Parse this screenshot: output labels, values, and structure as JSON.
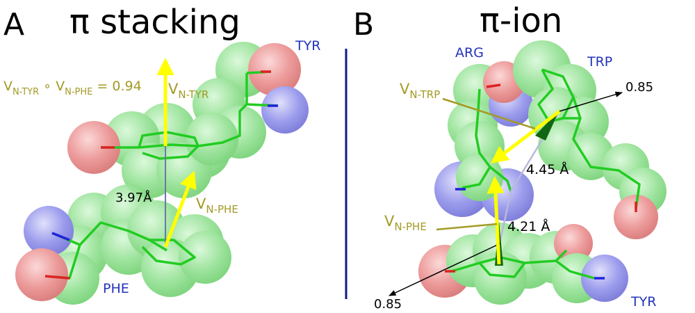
{
  "panel_a": {
    "letter": "A",
    "title": "π stacking",
    "residue_top": "TYR",
    "residue_bottom": "PHE",
    "dot_product_label": "V",
    "dot_product_sub1": "N-TYR",
    "dot_product_op": " ∘ V",
    "dot_product_sub2": "N-PHE",
    "dot_product_value": " = 0.94",
    "vec_top_label": "V",
    "vec_top_sub": "N-TYR",
    "vec_bottom_label": "V",
    "vec_bottom_sub": "N-PHE",
    "distance": "3.97Å"
  },
  "panel_b": {
    "letter": "B",
    "title": "π-ion",
    "residue_arg": "ARG",
    "residue_trp": "TRP",
    "residue_tyr": "TYR",
    "vec_trp_label": "V",
    "vec_trp_sub": "N-TRP",
    "vec_phe_label": "V",
    "vec_phe_sub": "N-PHE",
    "distance_upper": "4.45 Å",
    "distance_lower": "4.21 Å",
    "value_upper": "0.85",
    "value_lower": "0.85"
  },
  "colors": {
    "carbon": "#7fdd7f",
    "oxygen": "#e77a7a",
    "nitrogen": "#7e7ee6",
    "bond": "#22cc22",
    "vector": "#ffff00",
    "label_olive": "#a39a25",
    "residue_blue": "#2233bb",
    "divider": "#101a80"
  }
}
